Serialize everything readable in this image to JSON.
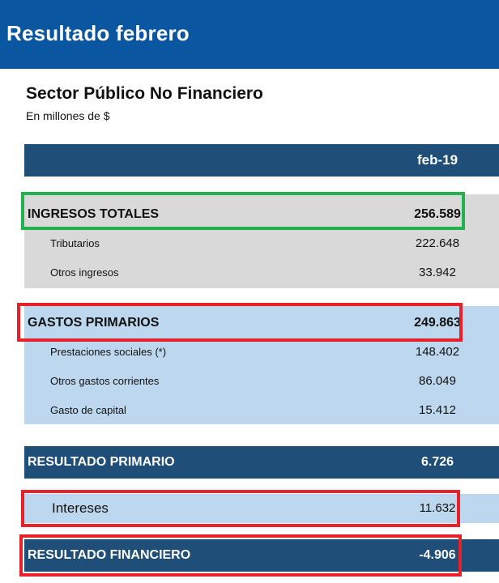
{
  "header": {
    "title": "Resultado febrero"
  },
  "table": {
    "title": "Sector Público No Financiero",
    "units": "En millones de $",
    "column_header": "feb-19",
    "ingresos": {
      "label": "INGRESOS TOTALES",
      "value": "256.589",
      "items": [
        {
          "label": "Tributarios",
          "value": "222.648"
        },
        {
          "label": "Otros ingresos",
          "value": "33.942"
        }
      ]
    },
    "gastos": {
      "label": "GASTOS PRIMARIOS",
      "value": "249.863",
      "items": [
        {
          "label": "Prestaciones sociales (*)",
          "value": "148.402"
        },
        {
          "label": "Otros gastos corrientes",
          "value": "86.049"
        },
        {
          "label": "Gasto de capital",
          "value": "15.412"
        }
      ]
    },
    "resultado_primario": {
      "label": "RESULTADO PRIMARIO",
      "value": "6.726"
    },
    "intereses": {
      "label": "Intereses",
      "value": "11.632"
    },
    "resultado_financiero": {
      "label": "RESULTADO FINANCIERO",
      "value": "-4.906"
    }
  },
  "colors": {
    "header_blue": "#0b56a0",
    "navy": "#1f4e79",
    "gray_band": "#d9d9d9",
    "light_blue_band": "#bdd7ee",
    "highlight_green": "#22b14c",
    "highlight_red": "#e8202a"
  }
}
